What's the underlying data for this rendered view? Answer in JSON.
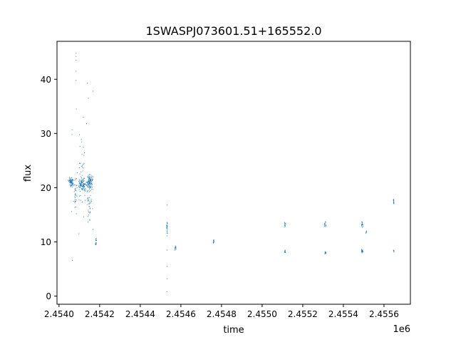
{
  "chart_data": {
    "type": "scatter",
    "title": "1SWASPJ073601.51+165552.0",
    "xlabel": "time",
    "ylabel": "flux",
    "x_offset_label": "1e6",
    "x_scale": 1000000,
    "xlim": [
      2.45399,
      2.45573
    ],
    "ylim": [
      -1.5,
      47
    ],
    "xticks": [
      2.454,
      2.4542,
      2.4544,
      2.4546,
      2.4548,
      2.455,
      2.4552,
      2.4554,
      2.4556
    ],
    "xtick_labels": [
      "2.4540",
      "2.4542",
      "2.4544",
      "2.4546",
      "2.4548",
      "2.4550",
      "2.4552",
      "2.4554",
      "2.4556"
    ],
    "yticks": [
      0,
      10,
      20,
      30,
      40
    ],
    "ytick_labels": [
      "0",
      "10",
      "20",
      "30",
      "40"
    ],
    "grid": false,
    "marker_color": "#1f77b4",
    "clusters": [
      {
        "x_center": 2.45406,
        "x_spread": 1.2e-05,
        "y_center": 21.0,
        "y_spread": 0.8,
        "count": 70
      },
      {
        "x_center": 2.45408,
        "x_spread": 8e-06,
        "y_center": 19.0,
        "y_spread": 3.0,
        "count": 30
      },
      {
        "x_center": 2.454115,
        "x_spread": 2e-05,
        "y_center": 20.5,
        "y_spread": 1.0,
        "count": 90
      },
      {
        "x_center": 2.454115,
        "x_spread": 2e-05,
        "y_center": 22.0,
        "y_spread": 6.0,
        "count": 45
      },
      {
        "x_center": 2.45415,
        "x_spread": 1.5e-05,
        "y_center": 21.0,
        "y_spread": 1.3,
        "count": 110
      },
      {
        "x_center": 2.45415,
        "x_spread": 1.2e-05,
        "y_center": 17.0,
        "y_spread": 3.5,
        "count": 40
      },
      {
        "x_center": 2.454182,
        "x_spread": 3e-06,
        "y_center": 10.0,
        "y_spread": 0.7,
        "count": 18
      },
      {
        "x_center": 2.454532,
        "x_spread": 3e-06,
        "y_center": 12.6,
        "y_spread": 1.4,
        "count": 25
      },
      {
        "x_center": 2.454573,
        "x_spread": 3e-06,
        "y_center": 8.9,
        "y_spread": 0.35,
        "count": 14
      },
      {
        "x_center": 2.454761,
        "x_spread": 3e-06,
        "y_center": 10.1,
        "y_spread": 0.4,
        "count": 14
      },
      {
        "x_center": 2.455113,
        "x_spread": 3e-06,
        "y_center": 13.2,
        "y_spread": 0.5,
        "count": 14
      },
      {
        "x_center": 2.455113,
        "x_spread": 3e-06,
        "y_center": 8.3,
        "y_spread": 0.3,
        "count": 10
      },
      {
        "x_center": 2.455311,
        "x_spread": 3e-06,
        "y_center": 13.3,
        "y_spread": 0.6,
        "count": 14
      },
      {
        "x_center": 2.455311,
        "x_spread": 3e-06,
        "y_center": 8.0,
        "y_spread": 0.3,
        "count": 10
      },
      {
        "x_center": 2.455493,
        "x_spread": 4e-06,
        "y_center": 13.2,
        "y_spread": 0.6,
        "count": 18
      },
      {
        "x_center": 2.455493,
        "x_spread": 4e-06,
        "y_center": 8.3,
        "y_spread": 0.5,
        "count": 18
      },
      {
        "x_center": 2.455513,
        "x_spread": 2e-06,
        "y_center": 11.8,
        "y_spread": 0.4,
        "count": 8
      },
      {
        "x_center": 2.455648,
        "x_spread": 2e-06,
        "y_center": 17.5,
        "y_spread": 0.6,
        "count": 12
      },
      {
        "x_center": 2.455648,
        "x_spread": 2e-06,
        "y_center": 8.3,
        "y_spread": 0.25,
        "count": 8
      }
    ],
    "points": [
      {
        "x": 2.454084,
        "y": 44.8
      },
      {
        "x": 2.454084,
        "y": 44.2
      },
      {
        "x": 2.454084,
        "y": 43.5
      },
      {
        "x": 2.454084,
        "y": 41.5
      },
      {
        "x": 2.454084,
        "y": 39.8
      },
      {
        "x": 2.454085,
        "y": 34.5
      },
      {
        "x": 2.454064,
        "y": 30.7
      },
      {
        "x": 2.454064,
        "y": 29.8
      },
      {
        "x": 2.45414,
        "y": 39.3
      },
      {
        "x": 2.454144,
        "y": 36.5
      },
      {
        "x": 2.454168,
        "y": 37.8
      },
      {
        "x": 2.45412,
        "y": 33.0
      },
      {
        "x": 2.454136,
        "y": 31.8
      },
      {
        "x": 2.454066,
        "y": 6.6
      },
      {
        "x": 2.454062,
        "y": 15.6
      },
      {
        "x": 2.454098,
        "y": 11.5
      },
      {
        "x": 2.454168,
        "y": 12.3
      },
      {
        "x": 2.454532,
        "y": 16.8
      },
      {
        "x": 2.454532,
        "y": 8.5
      },
      {
        "x": 2.454532,
        "y": 5.5
      },
      {
        "x": 2.454532,
        "y": 3.2
      },
      {
        "x": 2.454531,
        "y": 0.8
      }
    ]
  }
}
